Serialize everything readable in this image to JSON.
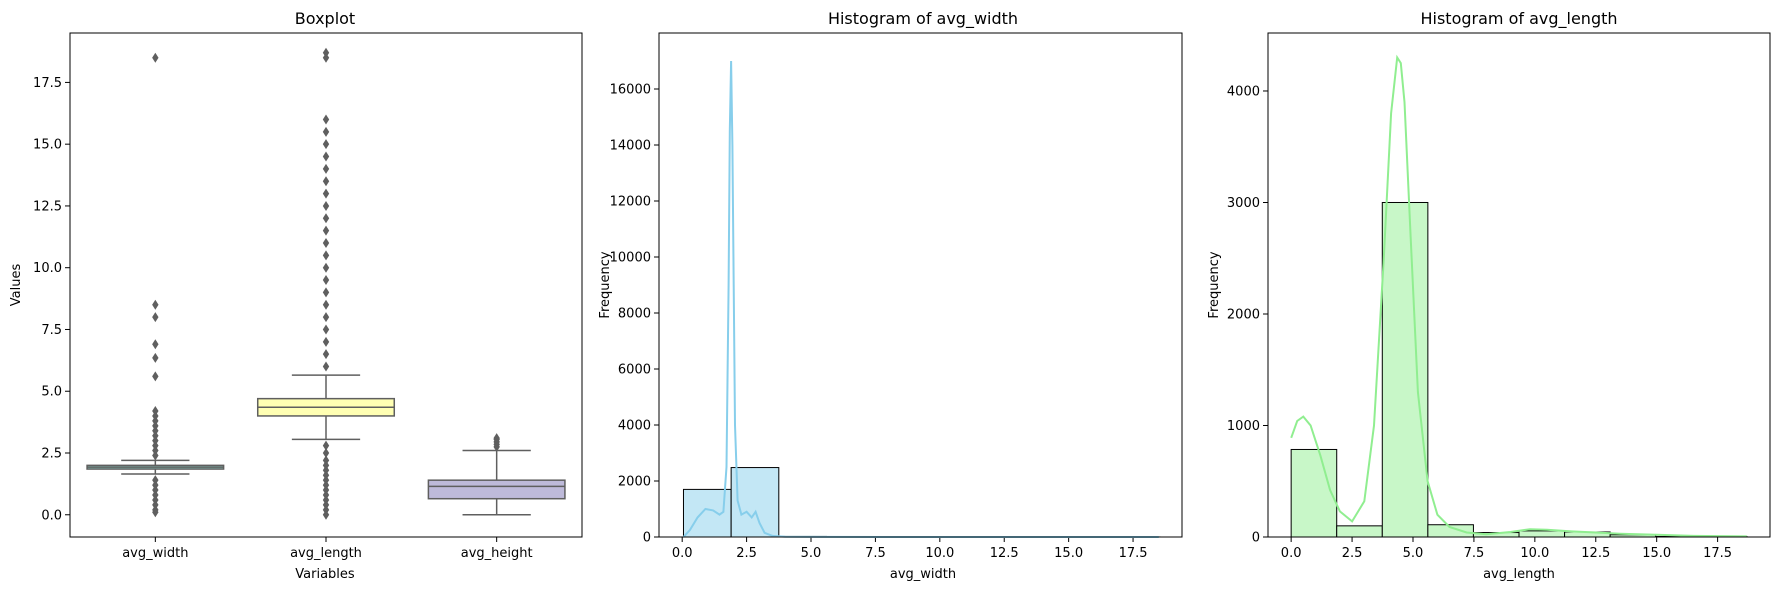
{
  "chart_data": [
    {
      "type": "box",
      "title": "Boxplot",
      "xlabel": "Variables",
      "ylabel": "Values",
      "ylim": [
        -0.9,
        19.5
      ],
      "yticks": [
        0.0,
        2.5,
        5.0,
        7.5,
        10.0,
        12.5,
        15.0,
        17.5
      ],
      "ytick_labels": [
        "0.0",
        "2.5",
        "5.0",
        "7.5",
        "10.0",
        "12.5",
        "15.0",
        "17.5"
      ],
      "categories": [
        "avg_width",
        "avg_length",
        "avg_height"
      ],
      "boxes": [
        {
          "name": "avg_width",
          "color": "#8dd3c7",
          "q1": 1.85,
          "median": 1.93,
          "q3": 2.0,
          "whisker_low": 1.65,
          "whisker_high": 2.2,
          "outliers": [
            18.5,
            8.5,
            8.0,
            6.9,
            6.35,
            5.6,
            4.2,
            4.0,
            3.8,
            3.6,
            3.4,
            3.2,
            3.0,
            2.8,
            2.6,
            2.4,
            1.4,
            1.2,
            1.0,
            0.8,
            0.6,
            0.4,
            0.2,
            0.1
          ]
        },
        {
          "name": "avg_length",
          "color": "#ffffb3",
          "q1": 4.0,
          "median": 4.35,
          "q3": 4.7,
          "whisker_low": 3.05,
          "whisker_high": 5.65,
          "outliers": [
            18.7,
            18.5,
            16.0,
            15.5,
            15.0,
            14.5,
            14.0,
            13.5,
            13.0,
            12.5,
            12.0,
            11.5,
            11.0,
            10.5,
            10.0,
            9.5,
            9.0,
            8.5,
            8.0,
            7.5,
            7.0,
            6.5,
            6.0,
            2.8,
            2.5,
            2.2,
            2.0,
            1.8,
            1.6,
            1.4,
            1.2,
            1.0,
            0.8,
            0.6,
            0.4,
            0.2,
            0.0
          ]
        },
        {
          "name": "avg_height",
          "color": "#bebada",
          "q1": 0.65,
          "median": 1.15,
          "q3": 1.4,
          "whisker_low": 0.0,
          "whisker_high": 2.6,
          "outliers": [
            2.75,
            2.85,
            2.95,
            3.05,
            3.1
          ]
        }
      ]
    },
    {
      "type": "bar",
      "title": "Histogram of avg_width",
      "xlabel": "avg_width",
      "ylabel": "Frequency",
      "xlim": [
        -0.9,
        19.4
      ],
      "ylim": [
        0,
        18000
      ],
      "xticks": [
        0.0,
        2.5,
        5.0,
        7.5,
        10.0,
        12.5,
        15.0,
        17.5
      ],
      "xtick_labels": [
        "0.0",
        "2.5",
        "5.0",
        "7.5",
        "10.0",
        "12.5",
        "15.0",
        "17.5"
      ],
      "yticks": [
        0,
        2000,
        4000,
        6000,
        8000,
        10000,
        12000,
        14000,
        16000
      ],
      "ytick_labels": [
        "0",
        "2000",
        "4000",
        "6000",
        "8000",
        "10000",
        "12000",
        "14000",
        "16000"
      ],
      "bin_edges": [
        0.05,
        1.9,
        3.75,
        5.6,
        7.45,
        9.3,
        11.15,
        13.0,
        14.85,
        16.7,
        18.55
      ],
      "values": [
        1700,
        2480,
        20,
        8,
        4,
        0,
        0,
        0,
        0,
        2
      ],
      "bar_color": "#87ceeb",
      "kde": {
        "color": "#87ceeb",
        "x": [
          0.05,
          0.3,
          0.6,
          0.9,
          1.2,
          1.45,
          1.6,
          1.72,
          1.8,
          1.85,
          1.9,
          1.95,
          2.0,
          2.05,
          2.15,
          2.3,
          2.5,
          2.7,
          2.85,
          3.0,
          3.2,
          3.5,
          4.0,
          5.0,
          8.0,
          12.0,
          16.0,
          18.5
        ],
        "y": [
          0,
          250,
          700,
          1000,
          950,
          800,
          900,
          2500,
          9000,
          14500,
          17000,
          14000,
          9000,
          4000,
          1300,
          800,
          900,
          700,
          900,
          500,
          150,
          40,
          10,
          3,
          1,
          1,
          1,
          1
        ]
      }
    },
    {
      "type": "bar",
      "title": "Histogram of avg_length",
      "xlabel": "avg_length",
      "ylabel": "Frequency",
      "xlim": [
        -0.95,
        19.65
      ],
      "ylim": [
        0,
        4520
      ],
      "xticks": [
        0.0,
        2.5,
        5.0,
        7.5,
        10.0,
        12.5,
        15.0,
        17.5
      ],
      "xtick_labels": [
        "0.0",
        "2.5",
        "5.0",
        "7.5",
        "10.0",
        "12.5",
        "15.0",
        "17.5"
      ],
      "yticks": [
        0,
        1000,
        2000,
        3000,
        4000
      ],
      "ytick_labels": [
        "0",
        "1000",
        "2000",
        "3000",
        "4000"
      ],
      "bin_edges": [
        0.0,
        1.87,
        3.74,
        5.61,
        7.48,
        9.35,
        11.22,
        13.09,
        14.96,
        16.83,
        18.7
      ],
      "values": [
        785,
        100,
        3000,
        110,
        40,
        55,
        45,
        20,
        5,
        5
      ],
      "bar_color": "#90ee90",
      "kde": {
        "color": "#90ee90",
        "x": [
          0.0,
          0.25,
          0.5,
          0.8,
          1.2,
          1.6,
          2.0,
          2.5,
          3.0,
          3.4,
          3.8,
          4.1,
          4.35,
          4.5,
          4.65,
          4.9,
          5.2,
          5.6,
          6.0,
          6.5,
          7.2,
          8.0,
          9.0,
          9.8,
          10.5,
          11.5,
          12.5,
          13.5,
          15.0,
          16.5,
          18.7
        ],
        "y": [
          890,
          1040,
          1080,
          1000,
          730,
          420,
          230,
          140,
          320,
          1000,
          2500,
          3800,
          4300,
          4250,
          3900,
          2700,
          1300,
          500,
          200,
          90,
          40,
          25,
          45,
          70,
          65,
          50,
          40,
          30,
          20,
          10,
          5
        ]
      }
    }
  ]
}
